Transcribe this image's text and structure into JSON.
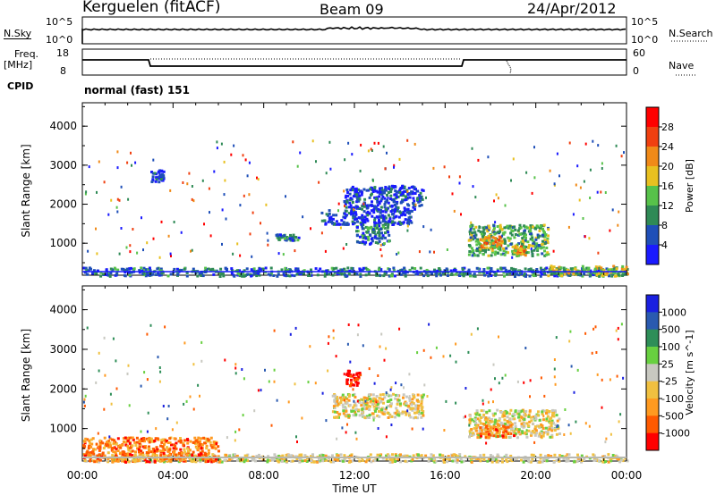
{
  "header": {
    "station": "Kerguelen (fitACF)",
    "beam": "Beam 09",
    "date": "24/Apr/2012"
  },
  "noise_panel": {
    "left_label": "N.Sky",
    "right_label": "N.Search",
    "left_ticks": [
      "10^5",
      "10^0"
    ],
    "right_ticks": [
      "10^5",
      "10^0"
    ]
  },
  "freq_panel": {
    "left_label_1": "Freq.",
    "left_label_2": "[MHz]",
    "right_label": "Nave",
    "left_ticks": [
      "18",
      "8"
    ],
    "right_ticks": [
      "60",
      "0"
    ]
  },
  "cpid": {
    "label": "CPID",
    "value": "normal (fast) 151"
  },
  "colors": {
    "power": [
      "#1a1aff",
      "#1f4fb8",
      "#2f8a56",
      "#57c24a",
      "#e8c020",
      "#f08a18",
      "#f04010",
      "#ff0000"
    ],
    "velocity": [
      "#ff0000",
      "#ff5a00",
      "#ff9a20",
      "#f0c040",
      "#c8c8c0",
      "#68d040",
      "#2e8e58",
      "#2a5ab0",
      "#1a20e0"
    ],
    "ground_scatter": "#b8b8b0"
  },
  "chart_data": [
    {
      "type": "heatmap",
      "title": "",
      "xlabel": "",
      "ylabel": "Slant Range [km]",
      "xlim": [
        "00:00",
        "24:00"
      ],
      "ylim": [
        180,
        4600
      ],
      "y_ticks": [
        1000,
        2000,
        3000,
        4000
      ],
      "colorbar_label": "Power [dB]",
      "colorbar_ticks": [
        "4",
        "8",
        "12",
        "16",
        "20",
        "24",
        "28"
      ],
      "scatter_regions": [
        {
          "t_start": 0.0,
          "t_end": 24.0,
          "range_start": 180,
          "range_end": 400,
          "level": 2
        },
        {
          "t_start": 3.0,
          "t_end": 3.6,
          "range_start": 2600,
          "range_end": 2900,
          "level": 1
        },
        {
          "t_start": 8.5,
          "t_end": 9.5,
          "range_start": 1100,
          "range_end": 1250,
          "level": 2
        },
        {
          "t_start": 10.5,
          "t_end": 14.5,
          "range_start": 1500,
          "range_end": 1900,
          "level": 1
        },
        {
          "t_start": 11.5,
          "t_end": 15.0,
          "range_start": 1900,
          "range_end": 2500,
          "level": 1
        },
        {
          "t_start": 12.0,
          "t_end": 13.5,
          "range_start": 1000,
          "range_end": 1500,
          "level": 2
        },
        {
          "t_start": 17.0,
          "t_end": 20.5,
          "range_start": 700,
          "range_end": 1500,
          "level": 3
        },
        {
          "t_start": 17.5,
          "t_end": 18.5,
          "range_start": 900,
          "range_end": 1200,
          "level": 5
        },
        {
          "t_start": 19.0,
          "t_end": 19.5,
          "range_start": 700,
          "range_end": 950,
          "level": 5
        },
        {
          "t_start": 20.5,
          "t_end": 24.0,
          "range_start": 180,
          "range_end": 450,
          "level": 4
        }
      ]
    },
    {
      "type": "heatmap",
      "title": "",
      "xlabel": "Time UT",
      "ylabel": "Slant Range [km]",
      "xlim": [
        "00:00",
        "24:00"
      ],
      "ylim": [
        180,
        4600
      ],
      "x_ticks": [
        "00:00",
        "04:00",
        "08:00",
        "12:00",
        "16:00",
        "20:00",
        "00:00"
      ],
      "y_ticks": [
        1000,
        2000,
        3000,
        4000
      ],
      "colorbar_label": "Velocity [m s^-1]",
      "colorbar_ticks": [
        "1000",
        "500",
        "100",
        "25",
        "-25",
        "-100",
        "-500",
        "-1000"
      ],
      "scatter_regions": [
        {
          "t_start": 0.0,
          "t_end": 24.0,
          "range_start": 180,
          "range_end": 380,
          "level": 4
        },
        {
          "t_start": 11.0,
          "t_end": 15.0,
          "range_start": 1300,
          "range_end": 1900,
          "level": 4
        },
        {
          "t_start": 11.6,
          "t_end": 12.2,
          "range_start": 2100,
          "range_end": 2500,
          "level": 0
        },
        {
          "t_start": 17.0,
          "t_end": 21.0,
          "range_start": 800,
          "range_end": 1500,
          "level": 4
        },
        {
          "t_start": 17.5,
          "t_end": 19.0,
          "range_start": 800,
          "range_end": 1100,
          "level": 2
        },
        {
          "t_start": 0.0,
          "t_end": 6.0,
          "range_start": 180,
          "range_end": 800,
          "level": 2
        }
      ]
    }
  ]
}
